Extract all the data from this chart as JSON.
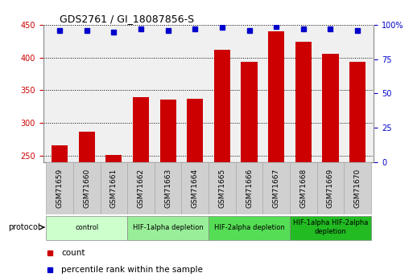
{
  "title": "GDS2761 / GI_18087856-S",
  "samples": [
    "GSM71659",
    "GSM71660",
    "GSM71661",
    "GSM71662",
    "GSM71663",
    "GSM71664",
    "GSM71665",
    "GSM71666",
    "GSM71667",
    "GSM71668",
    "GSM71669",
    "GSM71670"
  ],
  "counts": [
    265,
    287,
    251,
    340,
    336,
    337,
    412,
    393,
    440,
    424,
    406,
    393
  ],
  "percentile_ranks": [
    96,
    96,
    95,
    97,
    96,
    97,
    98,
    96,
    99,
    97,
    97,
    96
  ],
  "ylim_left": [
    240,
    450
  ],
  "ylim_right": [
    0,
    100
  ],
  "yticks_left": [
    250,
    300,
    350,
    400,
    450
  ],
  "yticks_right": [
    0,
    25,
    50,
    75,
    100
  ],
  "bar_color": "#cc0000",
  "dot_color": "#0000cc",
  "background_color": "#f0f0f0",
  "plot_bg_color": "#f0f0f0",
  "grid_color": "#000000",
  "cell_bg_color": "#d4d4d4",
  "groups": [
    {
      "label": "control",
      "spans": [
        0,
        3
      ],
      "color": "#ccffcc"
    },
    {
      "label": "HIF-1alpha depletion",
      "spans": [
        3,
        6
      ],
      "color": "#99ee99"
    },
    {
      "label": "HIF-2alpha depletion",
      "spans": [
        6,
        9
      ],
      "color": "#55dd55"
    },
    {
      "label": "HIF-1alpha HIF-2alpha\ndepletion",
      "spans": [
        9,
        12
      ],
      "color": "#22bb22"
    }
  ],
  "tick_label_color_left": "#cc0000",
  "tick_label_color_right": "#0000cc",
  "legend_count_color": "#cc0000",
  "legend_rank_color": "#0000cc",
  "percent_label": "100%",
  "right_ytick_labels": [
    "0",
    "25",
    "50",
    "75",
    "100%"
  ]
}
